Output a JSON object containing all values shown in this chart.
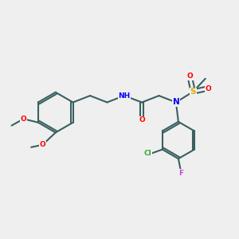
{
  "background_color": "#efefef",
  "atom_colors": {
    "C": "#3a6060",
    "H": "#808080",
    "N": "#0000ff",
    "O": "#ff0000",
    "S": "#ddaa00",
    "Cl": "#33aa33",
    "F": "#cc44cc"
  },
  "bond_color": "#3a6060",
  "bond_width": 1.5
}
